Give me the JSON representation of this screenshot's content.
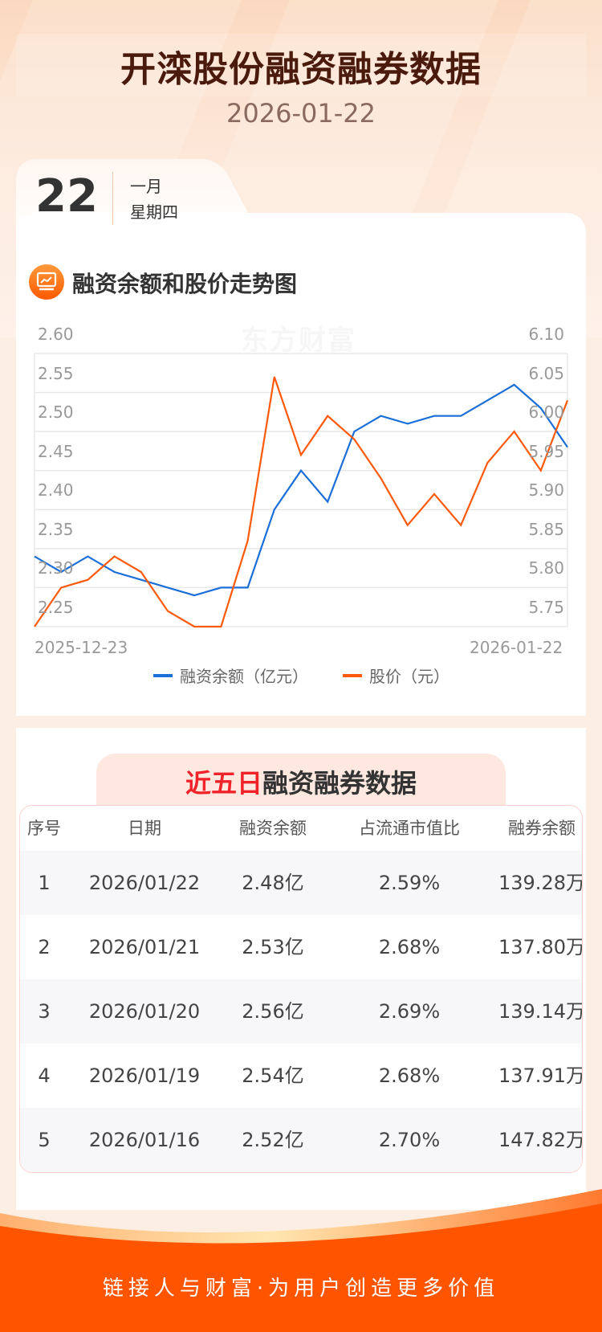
{
  "header": {
    "title": "开滦股份融资融券数据",
    "date": "2026-01-22"
  },
  "date_tab": {
    "day": "22",
    "month": "一月",
    "weekday": "星期四"
  },
  "chart_section": {
    "title": "融资余额和股价走势图",
    "icon": "chart-monitor-icon",
    "watermark": "东方财富"
  },
  "chart_data": {
    "type": "line",
    "title": "融资余额和股价走势图",
    "x_start_label": "2025-12-23",
    "x_end_label": "2026-01-22",
    "grid": true,
    "legend_position": "bottom",
    "left_axis": {
      "label": "融资余额（亿元）",
      "ticks": [
        "2.60",
        "2.55",
        "2.50",
        "2.45",
        "2.40",
        "2.35",
        "2.30",
        "2.25"
      ],
      "ylim": [
        2.25,
        2.6
      ]
    },
    "right_axis": {
      "label": "股价（元）",
      "ticks": [
        "6.10",
        "6.05",
        "6.00",
        "5.95",
        "5.90",
        "5.85",
        "5.80",
        "5.75"
      ],
      "ylim": [
        5.75,
        6.1
      ]
    },
    "x": [
      1,
      2,
      3,
      4,
      5,
      6,
      7,
      8,
      9,
      10,
      11,
      12,
      13,
      14,
      15,
      16,
      17,
      18,
      19,
      20,
      21
    ],
    "series": [
      {
        "name": "融资余额（亿元）",
        "axis": "left",
        "color": "#1a6fd8",
        "values": [
          2.34,
          2.32,
          2.34,
          2.32,
          2.31,
          2.3,
          2.29,
          2.3,
          2.3,
          2.4,
          2.45,
          2.41,
          2.5,
          2.52,
          2.51,
          2.52,
          2.52,
          2.54,
          2.56,
          2.53,
          2.48
        ]
      },
      {
        "name": "股价（元）",
        "axis": "right",
        "color": "#ff5a0a",
        "values": [
          5.75,
          5.8,
          5.81,
          5.84,
          5.82,
          5.77,
          5.75,
          5.75,
          5.86,
          6.07,
          5.97,
          6.02,
          5.99,
          5.94,
          5.88,
          5.92,
          5.88,
          5.96,
          6.0,
          5.95,
          6.04
        ]
      }
    ]
  },
  "legend": {
    "items": [
      {
        "label": "融资余额（亿元）",
        "color": "#1a6fd8"
      },
      {
        "label": "股价（元）",
        "color": "#ff5a0a"
      }
    ]
  },
  "table_section": {
    "title_highlight": "近五日",
    "title_rest": "融资融券数据",
    "columns": [
      "序号",
      "日期",
      "融资余额",
      "占流通市值比",
      "融券余额"
    ],
    "rows": [
      [
        "1",
        "2026/01/22",
        "2.48亿",
        "2.59%",
        "139.28万"
      ],
      [
        "2",
        "2026/01/21",
        "2.53亿",
        "2.68%",
        "137.80万"
      ],
      [
        "3",
        "2026/01/20",
        "2.56亿",
        "2.69%",
        "139.14万"
      ],
      [
        "4",
        "2026/01/19",
        "2.54亿",
        "2.68%",
        "137.91万"
      ],
      [
        "5",
        "2026/01/16",
        "2.52亿",
        "2.70%",
        "147.82万"
      ]
    ]
  },
  "footer": {
    "slogan": "链接人与财富·为用户创造更多价值"
  },
  "colors": {
    "accent": "#ff5500",
    "title": "#4a1a0c",
    "highlight": "#f0222a",
    "financing_line": "#1a6fd8",
    "price_line": "#ff5a0a"
  }
}
